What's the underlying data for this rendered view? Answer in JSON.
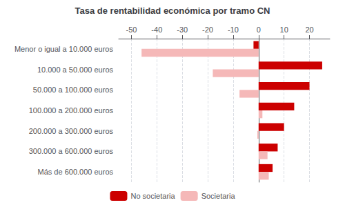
{
  "chart_data": {
    "type": "bar",
    "orientation": "horizontal",
    "title": "Tasa de rentabilidad económica por tramo CN",
    "categories": [
      "Menor o igual a 10.000 euros",
      "10.000 a 50.000 euros",
      "50.000 a 100.000 euros",
      "100.000 a 200.000 euros",
      "200.000 a 300.000 euros",
      "300.000 a 600.000 euros",
      "Más de 600.000 euros"
    ],
    "series": [
      {
        "name": "No societaria",
        "color": "#cc0000",
        "values": [
          -2.0,
          25.0,
          20.0,
          14.0,
          10.0,
          7.5,
          5.5
        ]
      },
      {
        "name": "Societaria",
        "color": "#f5b8b8",
        "values": [
          -46.0,
          -18.0,
          -7.5,
          1.5,
          -0.5,
          3.5,
          4.0
        ]
      }
    ],
    "xlim": [
      -55,
      28
    ],
    "xticks": [
      -50,
      -40,
      -30,
      -20,
      -10,
      0,
      10,
      20
    ],
    "grid": true,
    "legend": "bottom"
  }
}
